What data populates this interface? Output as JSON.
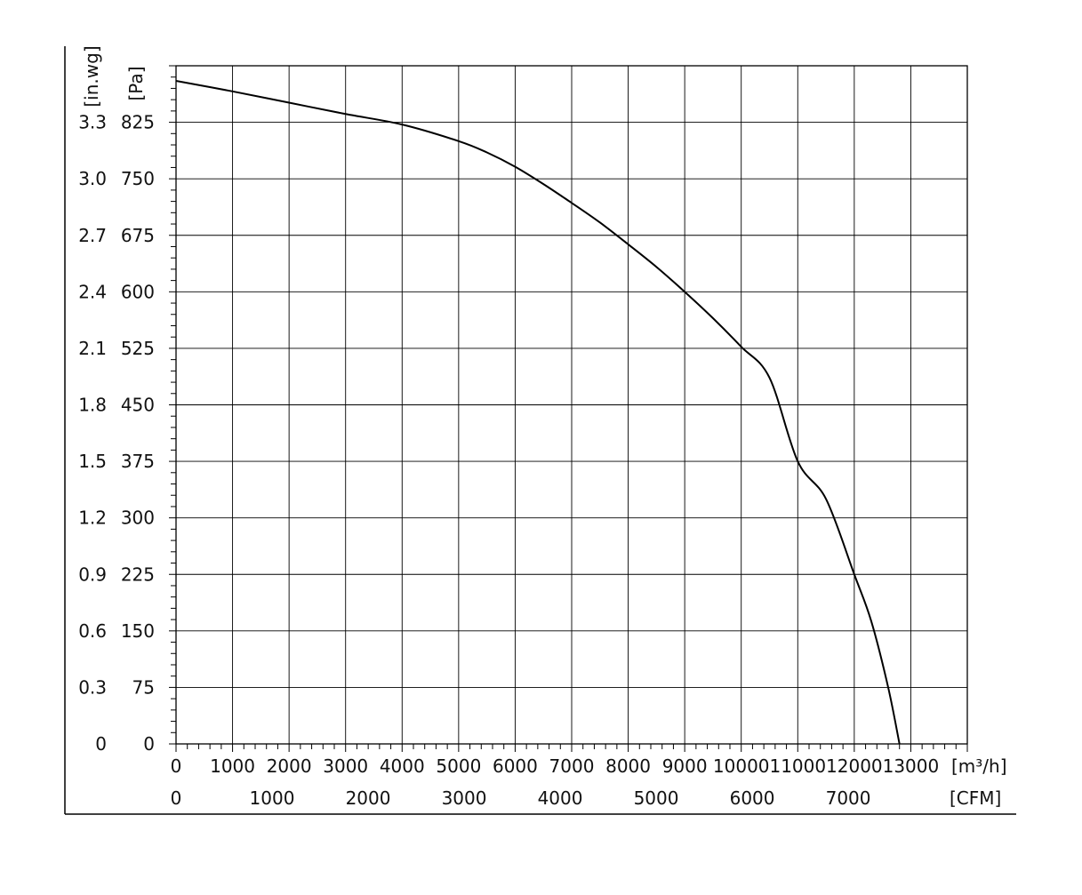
{
  "chart_data": {
    "type": "line",
    "title": "",
    "x_axis": {
      "primary_unit": "[m³/h]",
      "secondary_unit": "[CFM]",
      "range_m3h": [
        0,
        14000
      ],
      "primary_ticks": [
        "0",
        "1000",
        "2000",
        "3000",
        "4000",
        "5000",
        "6000",
        "7000",
        "8000",
        "9000",
        "10000",
        "11000",
        "12000",
        "13000"
      ],
      "secondary_ticks": [
        "0",
        "1000",
        "2000",
        "3000",
        "4000",
        "5000",
        "6000",
        "7000"
      ],
      "cfm_to_m3h": 1.699
    },
    "y_axis": {
      "primary_unit": "[Pa]",
      "secondary_unit": "[in.wg]",
      "range_pa": [
        0,
        900
      ],
      "pa_ticks": [
        "0",
        "75",
        "150",
        "225",
        "300",
        "375",
        "450",
        "525",
        "600",
        "675",
        "750",
        "825"
      ],
      "inwg_ticks": [
        "0",
        "0.3",
        "0.6",
        "0.9",
        "1.2",
        "1.5",
        "1.8",
        "2.1",
        "2.4",
        "2.7",
        "3.0",
        "3.3"
      ]
    },
    "grid": true,
    "series": [
      {
        "color": "#000000",
        "x": [
          0,
          1000,
          2000,
          3000,
          4000,
          5000,
          5500,
          6000,
          6500,
          7000,
          7500,
          8000,
          8500,
          9000,
          9500,
          10000,
          10500,
          11000,
          11500,
          12000,
          12300,
          12600,
          12800
        ],
        "y": [
          880,
          866,
          851,
          836,
          822,
          800,
          785,
          766,
          743,
          718,
          692,
          663,
          633,
          600,
          565,
          527,
          486,
          375,
          325,
          225,
          163,
          75,
          0
        ]
      }
    ]
  }
}
